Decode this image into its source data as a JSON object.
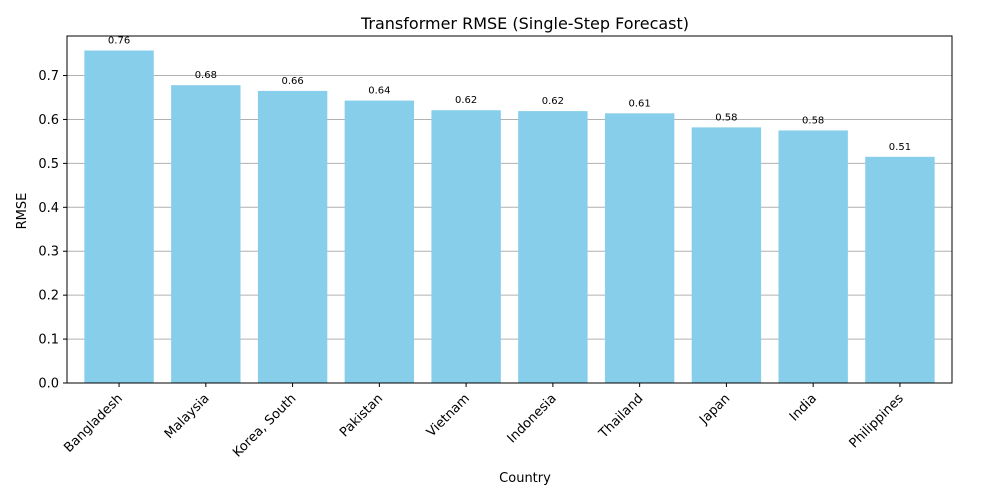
{
  "chart_data": {
    "type": "bar",
    "title": "Transformer RMSE (Single-Step Forecast)",
    "xlabel": "Country",
    "ylabel": "RMSE",
    "categories": [
      "Bangladesh",
      "Malaysia",
      "Korea, South",
      "Pakistan",
      "Vietnam",
      "Indonesia",
      "Thailand",
      "Japan",
      "India",
      "Philippines"
    ],
    "values": [
      0.757,
      0.678,
      0.665,
      0.643,
      0.621,
      0.619,
      0.614,
      0.582,
      0.575,
      0.515
    ],
    "value_labels": [
      "0.76",
      "0.68",
      "0.66",
      "0.64",
      "0.62",
      "0.62",
      "0.61",
      "0.58",
      "0.58",
      "0.51"
    ],
    "ylim": [
      0,
      0.79
    ],
    "yticks": [
      0.0,
      0.1,
      0.2,
      0.3,
      0.4,
      0.5,
      0.6,
      0.7
    ],
    "ytick_labels": [
      "0.0",
      "0.1",
      "0.2",
      "0.3",
      "0.4",
      "0.5",
      "0.6",
      "0.7"
    ],
    "grid": "y",
    "bar_color": "#87ceeb"
  }
}
